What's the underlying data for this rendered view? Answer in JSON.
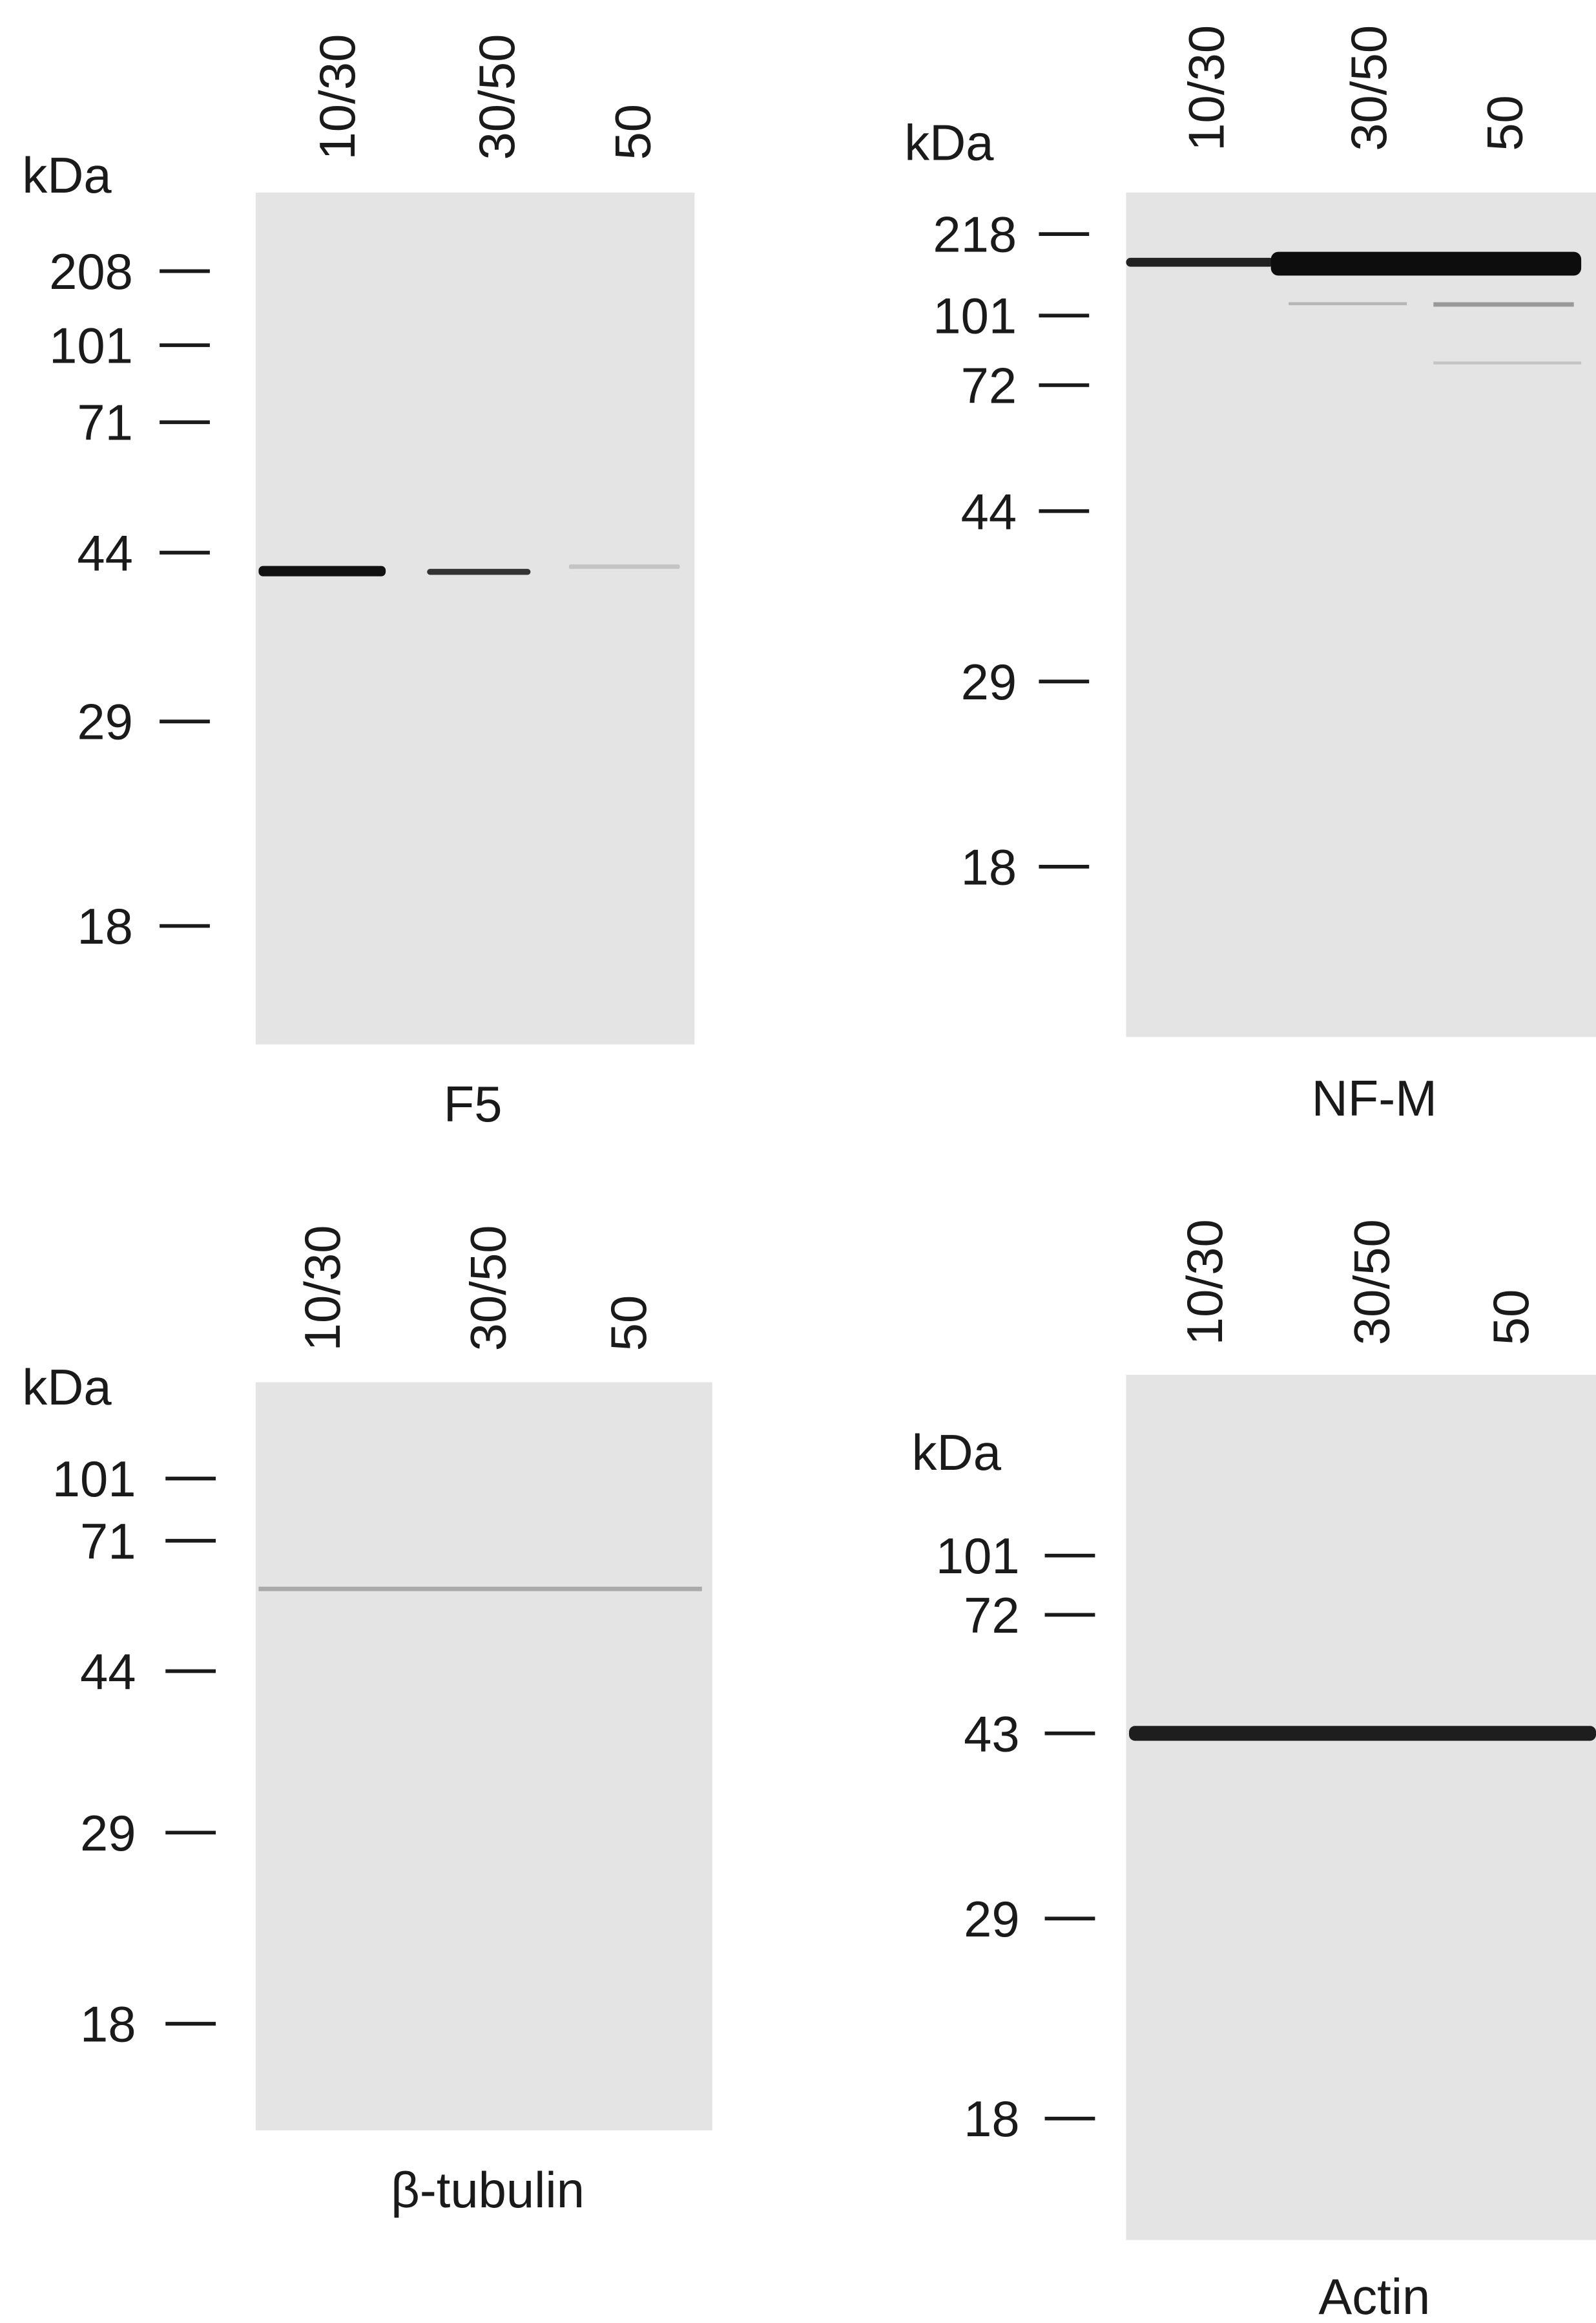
{
  "panels": [
    {
      "unit": "kDa",
      "lanes": [
        "10/30",
        "30/50",
        "50"
      ],
      "markers": [
        208,
        101,
        71,
        44,
        29,
        18
      ],
      "caption": "F5"
    },
    {
      "unit": "kDa",
      "lanes": [
        "10/30",
        "30/50",
        "50"
      ],
      "markers": [
        218,
        101,
        72,
        44,
        29,
        18
      ],
      "caption": "NF-M"
    },
    {
      "unit": "kDa",
      "lanes": [
        "10/30",
        "30/50",
        "50"
      ],
      "markers": [
        101,
        71,
        44,
        29,
        18
      ],
      "caption": "β-tubulin"
    },
    {
      "unit": "kDa",
      "lanes": [
        "10/30",
        "30/50",
        "50"
      ],
      "markers": [
        101,
        72,
        43,
        29,
        18
      ],
      "caption": "Actin"
    }
  ]
}
